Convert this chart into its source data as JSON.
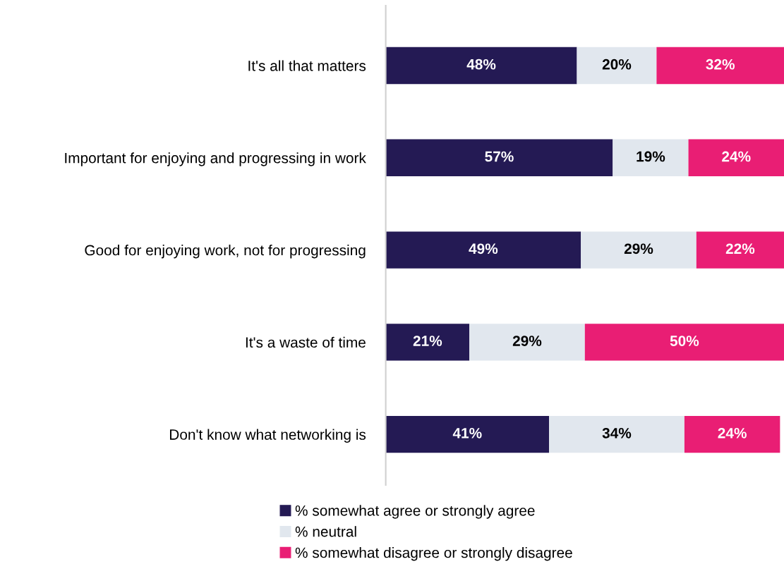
{
  "chart_data": {
    "type": "bar",
    "orientation": "horizontal",
    "stacked": true,
    "categories": [
      "It's all that matters",
      "Important for enjoying and progressing in work",
      "Good for enjoying work, not for progressing",
      "It's a waste of time",
      "Don't know what networking is"
    ],
    "series": [
      {
        "name": "% somewhat agree or strongly agree",
        "color": "#241a54",
        "values": [
          48,
          57,
          49,
          21,
          41
        ],
        "value_labels": [
          "48%",
          "57%",
          "49%",
          "21%",
          "41%"
        ]
      },
      {
        "name": "% neutral",
        "color": "#e1e7ee",
        "values": [
          20,
          19,
          29,
          29,
          34
        ],
        "value_labels": [
          "20%",
          "19%",
          "29%",
          "29%",
          "34%"
        ]
      },
      {
        "name": "% somewhat disagree or strongly disagree",
        "color": "#e91e74",
        "values": [
          32,
          24,
          22,
          50,
          24
        ],
        "value_labels": [
          "32%",
          "24%",
          "22%",
          "50%",
          "24%"
        ]
      }
    ],
    "legend": "bottom"
  }
}
